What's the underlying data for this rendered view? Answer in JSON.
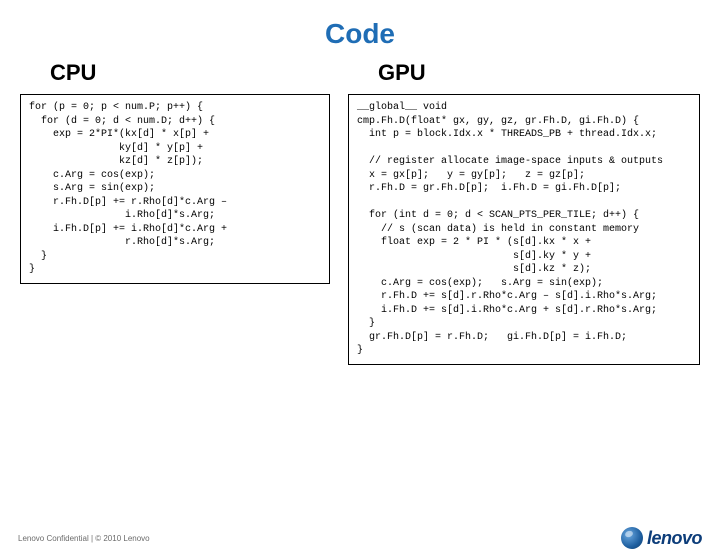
{
  "title": "Code",
  "left": {
    "heading": "CPU",
    "code": "for (p = 0; p < num.P; p++) {\n  for (d = 0; d < num.D; d++) {\n    exp = 2*PI*(kx[d] * x[p] +\n               ky[d] * y[p] +\n               kz[d] * z[p]);\n    c.Arg = cos(exp);\n    s.Arg = sin(exp);\n    r.Fh.D[p] += r.Rho[d]*c.Arg –\n                i.Rho[d]*s.Arg;\n    i.Fh.D[p] += i.Rho[d]*c.Arg +\n                r.Rho[d]*s.Arg;\n  }\n}"
  },
  "right": {
    "heading": "GPU",
    "code": "__global__ void\ncmp.Fh.D(float* gx, gy, gz, gr.Fh.D, gi.Fh.D) {\n  int p = block.Idx.x * THREADS_PB + thread.Idx.x;\n\n  // register allocate image-space inputs & outputs\n  x = gx[p];   y = gy[p];   z = gz[p];\n  r.Fh.D = gr.Fh.D[p];  i.Fh.D = gi.Fh.D[p];\n\n  for (int d = 0; d < SCAN_PTS_PER_TILE; d++) {\n    // s (scan data) is held in constant memory\n    float exp = 2 * PI * (s[d].kx * x +\n                          s[d].ky * y +\n                          s[d].kz * z);\n    c.Arg = cos(exp);   s.Arg = sin(exp);\n    r.Fh.D += s[d].r.Rho*c.Arg – s[d].i.Rho*s.Arg;\n    i.Fh.D += s[d].i.Rho*c.Arg + s[d].r.Rho*s.Arg;\n  }\n  gr.Fh.D[p] = r.Fh.D;   gi.Fh.D[p] = i.Fh.D;\n}"
  },
  "footer": {
    "text": "Lenovo Confidential | © 2010 Lenovo",
    "brand": "lenovo"
  },
  "colors": {
    "title": "#1f6db5",
    "border": "#000000",
    "background": "#ffffff",
    "footer_text": "#6b6b6b",
    "logo_dark": "#0d3d7a"
  },
  "font_sizes": {
    "title": 28,
    "heading": 22,
    "code": 10,
    "footer": 8
  }
}
